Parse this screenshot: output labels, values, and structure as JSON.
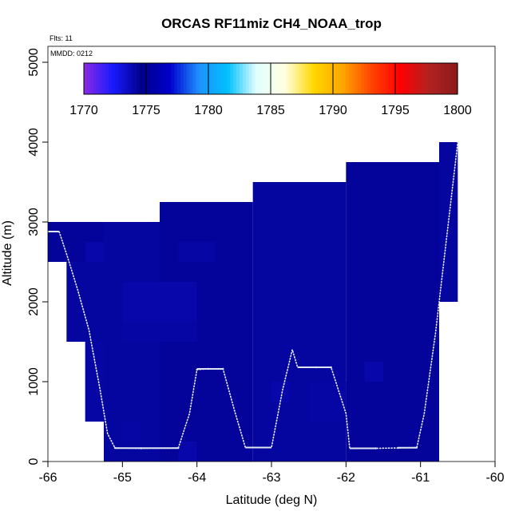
{
  "chart_data": {
    "type": "heatmap",
    "title": "ORCAS RF11miz CH4_NOAA_trop",
    "annotations": {
      "flights": "Flts: 11",
      "date": "MMDD: 0212"
    },
    "xlabel": "Latitude (deg N)",
    "ylabel": "Altitude (m)",
    "xlim": [
      -66,
      -60
    ],
    "ylim": [
      0,
      5200
    ],
    "x_ticks": [
      -66,
      -65,
      -64,
      -63,
      -62,
      -61,
      -60
    ],
    "x_tick_labels": [
      "-66",
      "-65",
      "-64",
      "-63",
      "-62",
      "-61",
      "-60"
    ],
    "y_ticks": [
      0,
      1000,
      2000,
      3000,
      4000,
      5000
    ],
    "y_tick_labels": [
      "0",
      "1000",
      "2000",
      "3000",
      "4000",
      "5000"
    ],
    "colorbar": {
      "min": 1770,
      "max": 1800,
      "ticks": [
        1770,
        1775,
        1780,
        1785,
        1790,
        1795,
        1800
      ],
      "tick_labels": [
        "1770",
        "1775",
        "1780",
        "1785",
        "1790",
        "1795",
        "1800"
      ],
      "colors": [
        "#8a2be2",
        "#1a1aff",
        "#00008b",
        "#0000cd",
        "#1e90ff",
        "#00bfff",
        "#e0ffff",
        "#ffffe0",
        "#ffd700",
        "#ffa500",
        "#ff4500",
        "#ff0000",
        "#b22222",
        "#8b1a1a"
      ]
    },
    "cells": [
      {
        "lat": [
          -66.0,
          -65.25
        ],
        "alt": [
          2500,
          3000
        ],
        "value": 1774.3
      },
      {
        "lat": [
          -65.75,
          -65.25
        ],
        "alt": [
          1500,
          2500
        ],
        "value": 1774.2
      },
      {
        "lat": [
          -65.5,
          -65.25
        ],
        "alt": [
          500,
          1500
        ],
        "value": 1774.1
      },
      {
        "lat": [
          -65.25,
          -64.5
        ],
        "alt": [
          0,
          3000
        ],
        "value": 1774.2
      },
      {
        "lat": [
          -64.5,
          -63.25
        ],
        "alt": [
          0,
          3250
        ],
        "value": 1774.3
      },
      {
        "lat": [
          -63.25,
          -62.0
        ],
        "alt": [
          0,
          3500
        ],
        "value": 1774.2
      },
      {
        "lat": [
          -62.0,
          -60.75
        ],
        "alt": [
          0,
          3750
        ],
        "value": 1774.3
      },
      {
        "lat": [
          -60.75,
          -60.5
        ],
        "alt": [
          2000,
          4000
        ],
        "value": 1774.2
      },
      {
        "lat": [
          -65.5,
          -65.25
        ],
        "alt": [
          2500,
          2750
        ],
        "value": 1774.0
      },
      {
        "lat": [
          -64.25,
          -63.75
        ],
        "alt": [
          2500,
          2750
        ],
        "value": 1774.1
      },
      {
        "lat": [
          -65.0,
          -64.0
        ],
        "alt": [
          1750,
          2250
        ],
        "value": 1774.0
      },
      {
        "lat": [
          -65.0,
          -64.0
        ],
        "alt": [
          1500,
          1750
        ],
        "value": 1774.1
      },
      {
        "lat": [
          -63.0,
          -62.75
        ],
        "alt": [
          750,
          1000
        ],
        "value": 1774.0
      },
      {
        "lat": [
          -62.5,
          -62.0
        ],
        "alt": [
          500,
          1000
        ],
        "value": 1774.1
      },
      {
        "lat": [
          -61.75,
          -61.5
        ],
        "alt": [
          1000,
          1250
        ],
        "value": 1774.0
      },
      {
        "lat": [
          -64.25,
          -64.0
        ],
        "alt": [
          0,
          250
        ],
        "value": 1774.0
      },
      {
        "lat": [
          -65.0,
          -64.75
        ],
        "alt": [
          250,
          500
        ],
        "value": 1774.1
      }
    ],
    "flight_track": [
      {
        "lat": -66.0,
        "alt": 2880
      },
      {
        "lat": -65.85,
        "alt": 2880
      },
      {
        "lat": -65.75,
        "alt": 2600
      },
      {
        "lat": -65.6,
        "alt": 2150
      },
      {
        "lat": -65.45,
        "alt": 1650
      },
      {
        "lat": -65.3,
        "alt": 900
      },
      {
        "lat": -65.2,
        "alt": 350
      },
      {
        "lat": -65.1,
        "alt": 170
      },
      {
        "lat": -64.75,
        "alt": 165
      },
      {
        "lat": -64.25,
        "alt": 170
      },
      {
        "lat": -64.1,
        "alt": 600
      },
      {
        "lat": -64.0,
        "alt": 1150
      },
      {
        "lat": -63.85,
        "alt": 1160
      },
      {
        "lat": -63.65,
        "alt": 1160
      },
      {
        "lat": -63.5,
        "alt": 650
      },
      {
        "lat": -63.35,
        "alt": 175
      },
      {
        "lat": -63.0,
        "alt": 175
      },
      {
        "lat": -62.85,
        "alt": 900
      },
      {
        "lat": -62.72,
        "alt": 1400
      },
      {
        "lat": -62.65,
        "alt": 1180
      },
      {
        "lat": -62.4,
        "alt": 1180
      },
      {
        "lat": -62.2,
        "alt": 1180
      },
      {
        "lat": -62.0,
        "alt": 600
      },
      {
        "lat": -61.95,
        "alt": 165
      },
      {
        "lat": -61.6,
        "alt": 165
      },
      {
        "lat": -61.3,
        "alt": 170
      },
      {
        "lat": -61.05,
        "alt": 175
      },
      {
        "lat": -60.95,
        "alt": 600
      },
      {
        "lat": -60.8,
        "alt": 1600
      },
      {
        "lat": -60.65,
        "alt": 2800
      },
      {
        "lat": -60.5,
        "alt": 4000
      }
    ]
  }
}
